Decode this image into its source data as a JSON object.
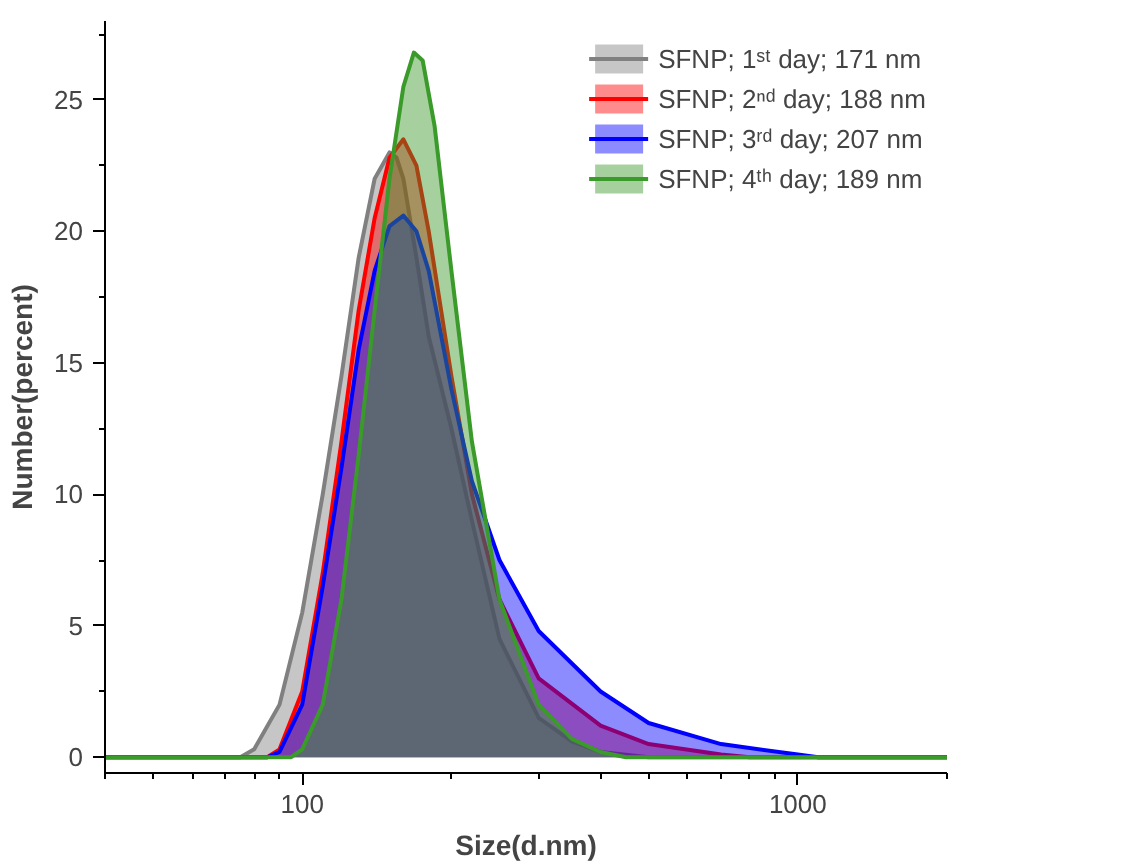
{
  "chart_data": {
    "type": "area",
    "xlabel": "Size(d.nm)",
    "ylabel": "Number(percent)",
    "log": "x",
    "xlim": [
      40,
      2000
    ],
    "xticks": [
      100,
      1000
    ],
    "ylim": [
      -0.6,
      28
    ],
    "yticks": [
      0,
      5,
      10,
      15,
      20,
      25
    ],
    "grid": false,
    "legend": "top right",
    "series": [
      {
        "name": "SFNP; 1ˢᵗ day; 171 nm",
        "color": "#808080",
        "x": [
          40,
          75,
          80,
          90,
          100,
          110,
          120,
          130,
          140,
          150,
          155,
          160,
          170,
          180,
          200,
          220,
          250,
          300,
          350,
          400,
          500,
          2000
        ],
        "values": [
          0,
          0,
          0.3,
          2,
          5.5,
          10,
          14.5,
          19,
          22,
          23,
          22.8,
          22,
          19,
          16,
          12.5,
          9,
          4.5,
          1.5,
          0.6,
          0.2,
          0,
          0
        ]
      },
      {
        "name": "SFNP; 2ⁿᵈ day; 188 nm",
        "color": "#ff0000",
        "x": [
          40,
          85,
          90,
          100,
          110,
          120,
          130,
          140,
          150,
          160,
          170,
          180,
          200,
          220,
          250,
          300,
          400,
          500,
          700,
          800,
          2000
        ],
        "values": [
          0,
          0,
          0.3,
          2.5,
          7,
          12,
          17,
          20.5,
          22.8,
          23.5,
          22.5,
          20,
          14.5,
          10,
          6,
          3,
          1.2,
          0.5,
          0.1,
          0,
          0
        ]
      },
      {
        "name": "SFNP; 3ʳᵈ day; 207 nm",
        "color": "#0000ff",
        "x": [
          40,
          85,
          90,
          100,
          110,
          120,
          130,
          140,
          150,
          160,
          170,
          180,
          200,
          220,
          250,
          300,
          400,
          500,
          700,
          1000,
          1100,
          2000
        ],
        "values": [
          0,
          0,
          0.2,
          2,
          6.5,
          11,
          15.5,
          18.5,
          20.2,
          20.6,
          20,
          18.5,
          14,
          10.5,
          7.5,
          4.8,
          2.5,
          1.3,
          0.5,
          0.1,
          0,
          0
        ]
      },
      {
        "name": "SFNP; 4ᵗʰ day; 189 nm",
        "color": "#3a9a2a",
        "x": [
          40,
          95,
          100,
          110,
          120,
          130,
          140,
          150,
          160,
          168,
          175,
          185,
          200,
          220,
          250,
          300,
          350,
          400,
          450,
          2000
        ],
        "values": [
          0,
          0,
          0.3,
          2,
          6,
          11.5,
          17,
          22,
          25.5,
          26.8,
          26.5,
          24,
          18.5,
          12,
          6,
          2,
          0.7,
          0.2,
          0,
          0
        ]
      }
    ]
  }
}
